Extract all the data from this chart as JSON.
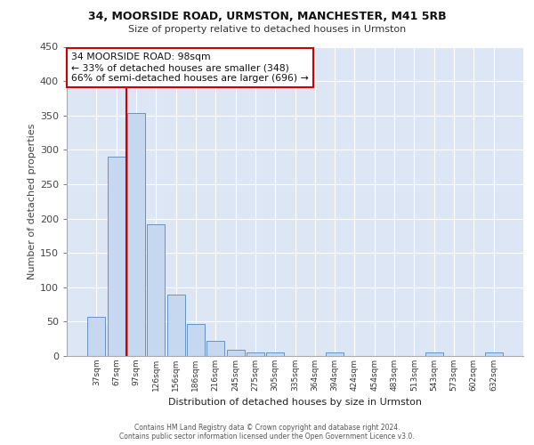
{
  "title1": "34, MOORSIDE ROAD, URMSTON, MANCHESTER, M41 5RB",
  "title2": "Size of property relative to detached houses in Urmston",
  "xlabel": "Distribution of detached houses by size in Urmston",
  "ylabel": "Number of detached properties",
  "categories": [
    "37sqm",
    "67sqm",
    "97sqm",
    "126sqm",
    "156sqm",
    "186sqm",
    "216sqm",
    "245sqm",
    "275sqm",
    "305sqm",
    "335sqm",
    "364sqm",
    "394sqm",
    "424sqm",
    "454sqm",
    "483sqm",
    "513sqm",
    "543sqm",
    "573sqm",
    "602sqm",
    "632sqm"
  ],
  "values": [
    57,
    290,
    353,
    192,
    90,
    46,
    22,
    9,
    5,
    5,
    0,
    0,
    5,
    0,
    0,
    0,
    0,
    5,
    0,
    0,
    5
  ],
  "bar_color": "#c5d8f0",
  "bar_edge_color": "#6494c4",
  "vline_x_index": 2,
  "vline_color": "#cc0000",
  "annotation_text": "34 MOORSIDE ROAD: 98sqm\n← 33% of detached houses are smaller (348)\n66% of semi-detached houses are larger (696) →",
  "annotation_box_color": "#ffffff",
  "annotation_box_edge_color": "#cc0000",
  "footer": "Contains HM Land Registry data © Crown copyright and database right 2024.\nContains public sector information licensed under the Open Government Licence v3.0.",
  "ylim": [
    0,
    450
  ],
  "yticks": [
    0,
    50,
    100,
    150,
    200,
    250,
    300,
    350,
    400,
    450
  ],
  "background_color": "#dce6f5",
  "grid_color": "#ffffff",
  "fig_width": 6.0,
  "fig_height": 5.0,
  "fig_dpi": 100
}
